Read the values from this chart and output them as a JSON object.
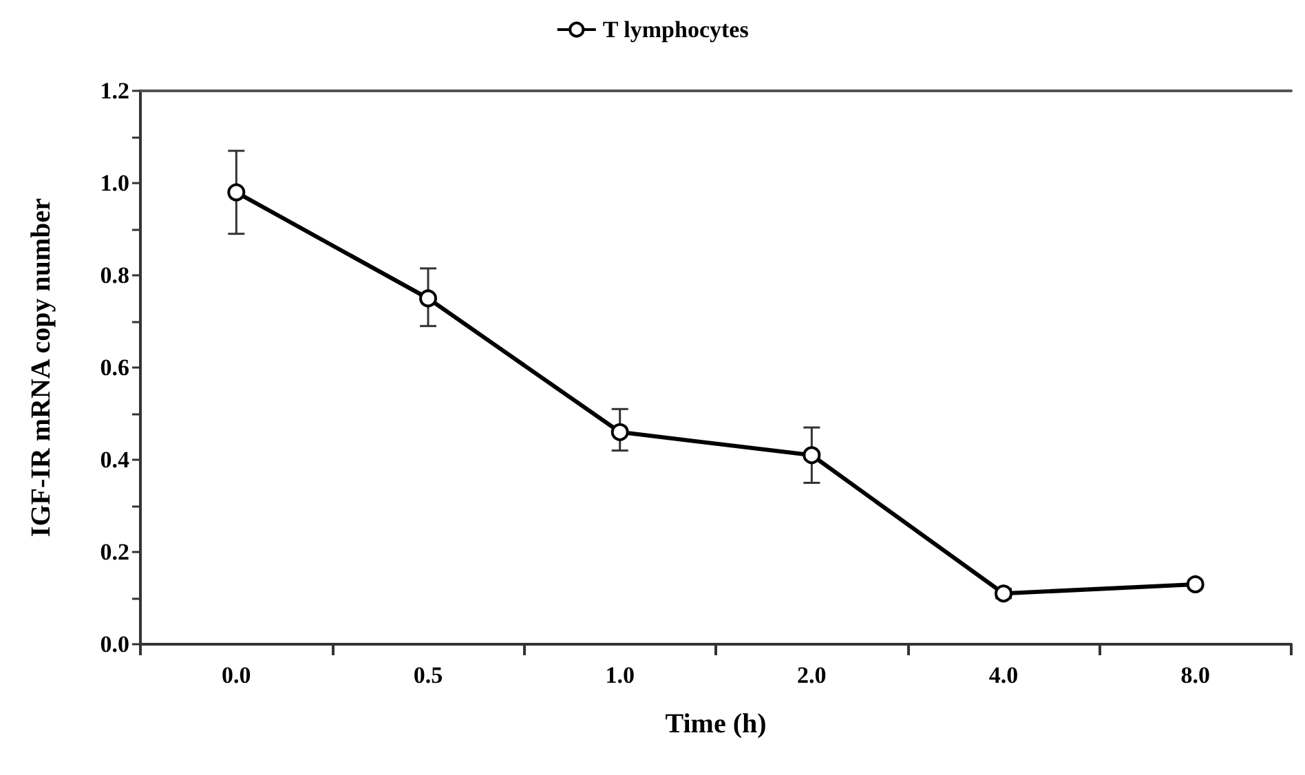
{
  "chart_data": {
    "type": "line",
    "xlabel": "Time (h)",
    "ylabel": "IGF-IR mRNA copy number",
    "categories": [
      "0.0",
      "0.5",
      "1.0",
      "2.0",
      "4.0",
      "8.0"
    ],
    "series": [
      {
        "name": "T lymphocytes",
        "color": "#000000",
        "values": [
          0.98,
          0.75,
          0.46,
          0.41,
          0.11,
          0.13
        ],
        "errors": [
          [
            0.89,
            1.07
          ],
          [
            0.69,
            0.815
          ],
          [
            0.42,
            0.51
          ],
          [
            0.35,
            0.47
          ],
          [
            0.1,
            0.12
          ],
          null
        ]
      }
    ],
    "ylim": [
      0,
      1.2
    ],
    "yticks": [
      {
        "value": 0,
        "label": "0.0"
      },
      {
        "value": 0.1,
        "label": null
      },
      {
        "value": 0.2,
        "label": "0.2"
      },
      {
        "value": 0.3,
        "label": null
      },
      {
        "value": 0.4,
        "label": "0.4"
      },
      {
        "value": 0.5,
        "label": null
      },
      {
        "value": 0.6,
        "label": "0.6"
      },
      {
        "value": 0.7,
        "label": null
      },
      {
        "value": 0.8,
        "label": "0.8"
      },
      {
        "value": 0.9,
        "label": null
      },
      {
        "value": 1.0,
        "label": "1.0"
      },
      {
        "value": 1.1,
        "label": null
      },
      {
        "value": 1.2,
        "label": "1.2"
      }
    ],
    "grid": false,
    "legend": "top",
    "marker": "circle",
    "line_style": "solid"
  }
}
